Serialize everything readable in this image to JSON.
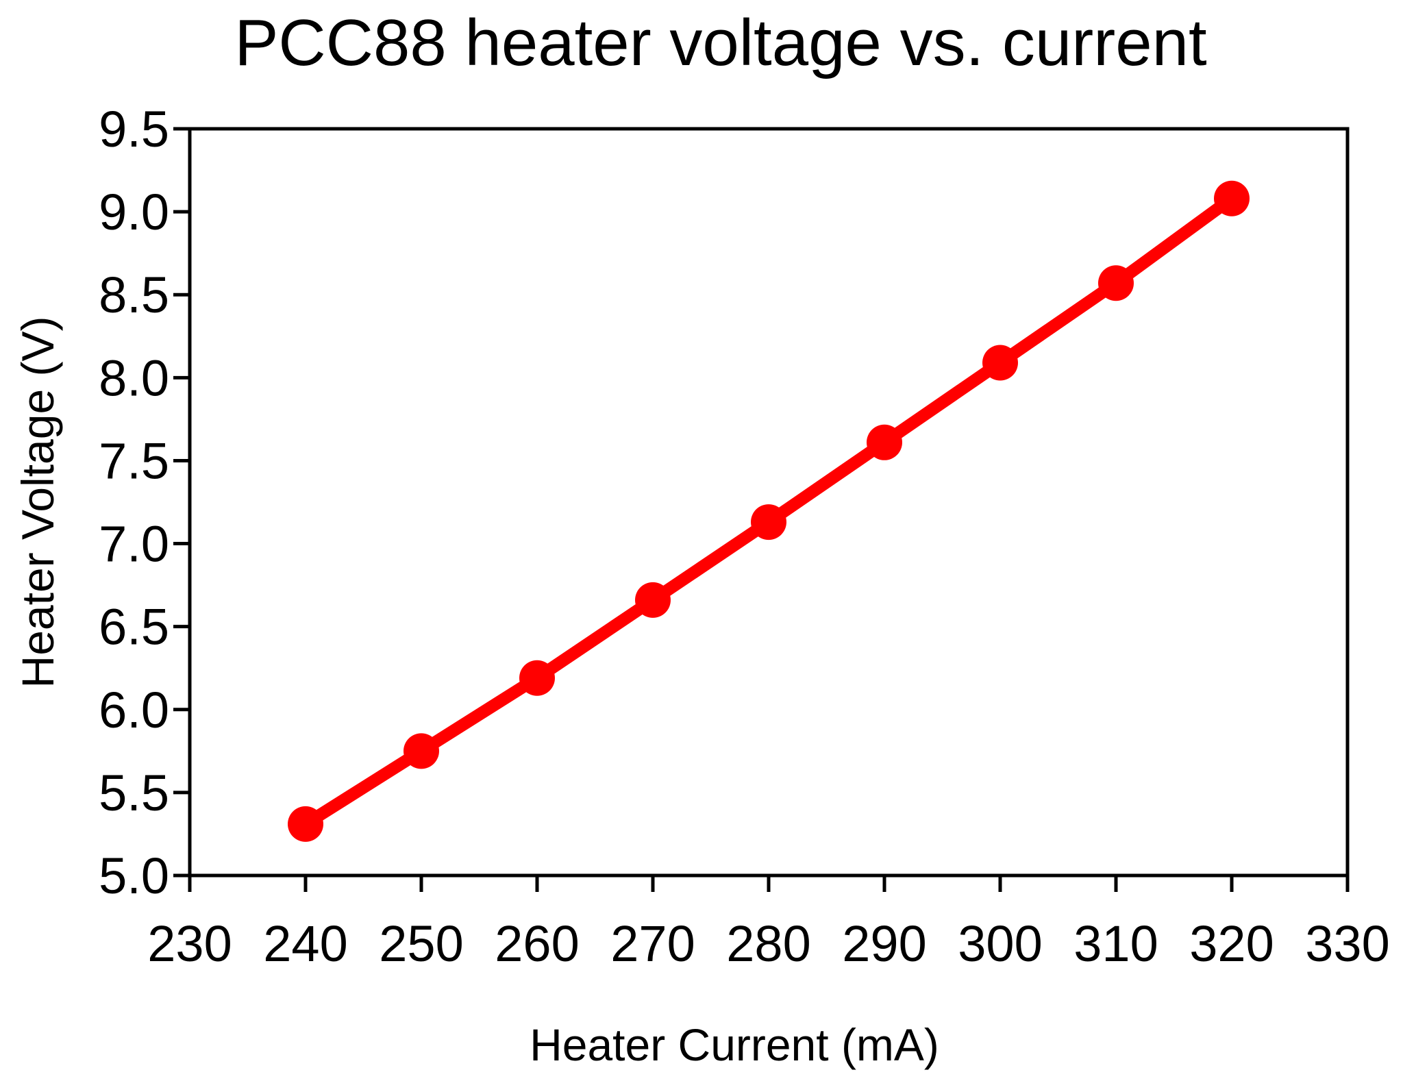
{
  "chart_data": {
    "type": "line",
    "title": "PCC88 heater voltage vs. current",
    "xlabel": "Heater Current (mA)",
    "ylabel": "Heater Voltage (V)",
    "xlim": [
      230,
      330
    ],
    "ylim": [
      5.0,
      9.5
    ],
    "xticks": [
      "230",
      "240",
      "250",
      "260",
      "270",
      "280",
      "290",
      "300",
      "310",
      "320",
      "330"
    ],
    "yticks": [
      "5.0",
      "5.5",
      "6.0",
      "6.5",
      "7.0",
      "7.5",
      "8.0",
      "8.5",
      "9.0",
      "9.5"
    ],
    "grid": false,
    "legend": "none",
    "series": [
      {
        "color": "#ff0000",
        "marker": "circle",
        "x": [
          240,
          250,
          260,
          270,
          280,
          290,
          300,
          310,
          320
        ],
        "y": [
          5.31,
          5.75,
          6.19,
          6.66,
          7.13,
          7.61,
          8.09,
          8.57,
          9.08
        ]
      }
    ]
  }
}
